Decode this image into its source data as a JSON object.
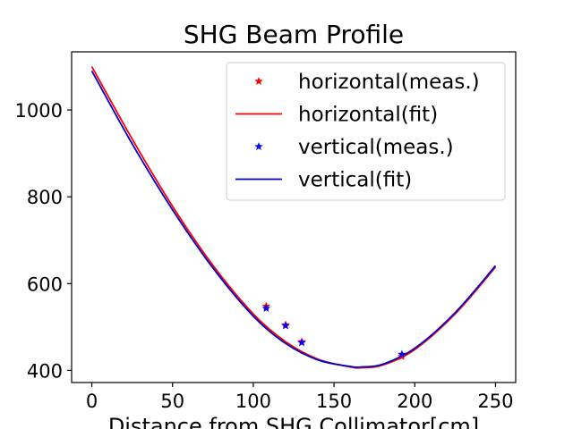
{
  "chart_data": {
    "type": "line",
    "title": "SHG Beam Profile",
    "xlabel": "Distance from SHG Collimator[cm]",
    "ylabel": "",
    "xlim": [
      -12.5,
      262.5
    ],
    "ylim": [
      372,
      1134
    ],
    "xticks": [
      0,
      50,
      100,
      150,
      200,
      250
    ],
    "yticks": [
      400,
      600,
      800,
      1000
    ],
    "xtick_labels": [
      "0",
      "50",
      "100",
      "150",
      "200",
      "250"
    ],
    "ytick_labels": [
      "400",
      "600",
      "800",
      "1000"
    ],
    "grid": false,
    "legend_position": "top-right",
    "series": [
      {
        "name": "horizontal(meas.)",
        "kind": "markers",
        "marker": "star",
        "color": "#ff0000",
        "points": [
          [
            108,
            548
          ],
          [
            120,
            505
          ],
          [
            130,
            466
          ],
          [
            192,
            432
          ]
        ]
      },
      {
        "name": "horizontal(fit)",
        "kind": "line",
        "color": "#ff0000",
        "points": [
          [
            0,
            1100
          ],
          [
            25,
            933
          ],
          [
            50,
            778
          ],
          [
            75,
            642
          ],
          [
            100,
            530
          ],
          [
            120,
            466
          ],
          [
            140,
            426
          ],
          [
            160,
            408
          ],
          [
            167,
            406
          ],
          [
            180,
            412
          ],
          [
            200,
            448
          ],
          [
            225,
            530
          ],
          [
            250,
            638
          ]
        ]
      },
      {
        "name": "vertical(meas.)",
        "kind": "markers",
        "marker": "star",
        "color": "#0000ff",
        "points": [
          [
            108,
            543
          ],
          [
            120,
            503
          ],
          [
            130,
            464
          ],
          [
            192,
            437
          ]
        ]
      },
      {
        "name": "vertical(fit)",
        "kind": "line",
        "color": "#0000cc",
        "points": [
          [
            0,
            1090
          ],
          [
            25,
            922
          ],
          [
            50,
            770
          ],
          [
            75,
            636
          ],
          [
            100,
            525
          ],
          [
            120,
            462
          ],
          [
            140,
            424
          ],
          [
            160,
            409
          ],
          [
            167,
            408
          ],
          [
            180,
            414
          ],
          [
            200,
            451
          ],
          [
            225,
            533
          ],
          [
            250,
            641
          ]
        ]
      }
    ]
  }
}
